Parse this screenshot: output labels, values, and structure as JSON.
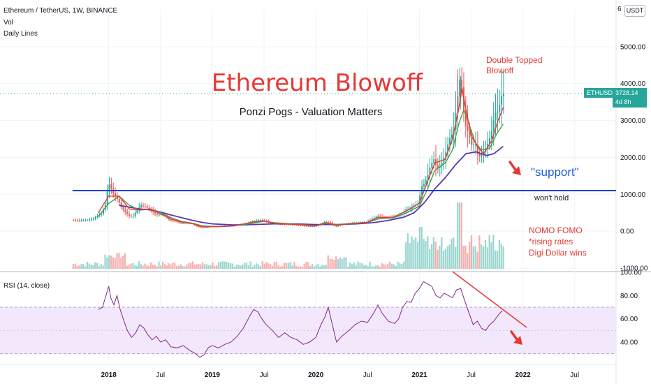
{
  "header": {
    "symbol_line": "Ethereum / TetherUS, 1W, BINANCE",
    "vol_label": "Vol",
    "daily_lines_label": "Daily Lines",
    "rsi_label": "RSI (14, close)"
  },
  "currency_button": "USDT",
  "top_axis_label": "6",
  "price_tag": {
    "symbol": "ETHUSDT",
    "price": "3728.14",
    "countdown": "4d 8h"
  },
  "annotations": {
    "title": "Ethereum Blowoff",
    "subtitle": "Ponzi Pogs - Valuation Matters",
    "double_top_line1": "Double Topped",
    "double_top_line2": "Blowoff",
    "support": "\"support\"",
    "wont_hold": "won't hold",
    "nomo1": "NOMO FOMO",
    "nomo2": "*rising rates",
    "nomo3": "Digi Dollar wins"
  },
  "colors": {
    "up": "#26a69a",
    "down": "#ef5350",
    "ma_fast": "#e53935",
    "ma_mid": "#43a047",
    "ma_slow": "#5e35b1",
    "support_line": "#1e3fce",
    "rsi_line": "#7e2a86",
    "rsi_band": "#f3e7fb",
    "title_red": "#e53935",
    "support_text": "#1e5bd9"
  },
  "chart_data": {
    "type": "candlestick",
    "price_axis": {
      "ticks": [
        5000,
        4000,
        3000,
        2000,
        1000,
        0,
        -1000
      ],
      "tick_labels": [
        "5000.00",
        "4000.00",
        "3000.00",
        "2000.00",
        "1000.00",
        "0.00",
        "-1000.00"
      ],
      "range": [
        -1000,
        6000
      ]
    },
    "rsi_axis": {
      "ticks": [
        100,
        80,
        60,
        40
      ],
      "tick_labels": [
        "100.00",
        "80.00",
        "60.00",
        "40.00"
      ],
      "band": [
        30,
        70
      ],
      "range": [
        25,
        100
      ]
    },
    "time_axis": {
      "tick_labels": [
        "2018",
        "Jul",
        "2019",
        "Jul",
        "2020",
        "Jul",
        "2021",
        "Jul",
        "2022",
        "Jul"
      ],
      "tick_dates": [
        2018.0,
        2018.5,
        2019.0,
        2019.5,
        2020.0,
        2020.5,
        2021.0,
        2021.5,
        2022.0,
        2022.5
      ],
      "range": [
        2016.95,
        2022.9
      ]
    },
    "support_level": 1100,
    "support_start": 2017.65,
    "last_price": 3728.14,
    "price_series": [
      [
        2017.65,
        300
      ],
      [
        2017.72,
        290
      ],
      [
        2017.8,
        300
      ],
      [
        2017.86,
        330
      ],
      [
        2017.9,
        420
      ],
      [
        2017.94,
        470
      ],
      [
        2017.98,
        740
      ],
      [
        2018.0,
        1150
      ],
      [
        2018.02,
        1300
      ],
      [
        2018.04,
        1100
      ],
      [
        2018.07,
        950
      ],
      [
        2018.1,
        850
      ],
      [
        2018.13,
        650
      ],
      [
        2018.16,
        550
      ],
      [
        2018.2,
        430
      ],
      [
        2018.24,
        390
      ],
      [
        2018.28,
        560
      ],
      [
        2018.32,
        700
      ],
      [
        2018.36,
        680
      ],
      [
        2018.4,
        590
      ],
      [
        2018.44,
        520
      ],
      [
        2018.48,
        440
      ],
      [
        2018.52,
        460
      ],
      [
        2018.56,
        420
      ],
      [
        2018.6,
        290
      ],
      [
        2018.64,
        280
      ],
      [
        2018.7,
        220
      ],
      [
        2018.76,
        220
      ],
      [
        2018.82,
        205
      ],
      [
        2018.87,
        110
      ],
      [
        2018.93,
        90
      ],
      [
        2018.97,
        120
      ],
      [
        2019.0,
        140
      ],
      [
        2019.06,
        120
      ],
      [
        2019.12,
        140
      ],
      [
        2019.18,
        140
      ],
      [
        2019.25,
        170
      ],
      [
        2019.33,
        170
      ],
      [
        2019.38,
        260
      ],
      [
        2019.43,
        280
      ],
      [
        2019.47,
        310
      ],
      [
        2019.52,
        280
      ],
      [
        2019.58,
        210
      ],
      [
        2019.65,
        190
      ],
      [
        2019.72,
        180
      ],
      [
        2019.8,
        180
      ],
      [
        2019.88,
        150
      ],
      [
        2019.95,
        130
      ],
      [
        2020.0,
        140
      ],
      [
        2020.05,
        180
      ],
      [
        2020.1,
        260
      ],
      [
        2020.15,
        230
      ],
      [
        2020.2,
        120
      ],
      [
        2020.25,
        180
      ],
      [
        2020.33,
        210
      ],
      [
        2020.42,
        235
      ],
      [
        2020.5,
        240
      ],
      [
        2020.55,
        330
      ],
      [
        2020.6,
        400
      ],
      [
        2020.66,
        380
      ],
      [
        2020.72,
        360
      ],
      [
        2020.78,
        390
      ],
      [
        2020.84,
        450
      ],
      [
        2020.88,
        580
      ],
      [
        2020.92,
        600
      ],
      [
        2020.96,
        700
      ],
      [
        2021.0,
        750
      ],
      [
        2021.03,
        1200
      ],
      [
        2021.06,
        1300
      ],
      [
        2021.09,
        1500
      ],
      [
        2021.12,
        1800
      ],
      [
        2021.15,
        1950
      ],
      [
        2021.18,
        1700
      ],
      [
        2021.22,
        1800
      ],
      [
        2021.26,
        2100
      ],
      [
        2021.3,
        2500
      ],
      [
        2021.34,
        2700
      ],
      [
        2021.37,
        3400
      ],
      [
        2021.4,
        4100
      ],
      [
        2021.42,
        3900
      ],
      [
        2021.45,
        2900
      ],
      [
        2021.48,
        2700
      ],
      [
        2021.52,
        2300
      ],
      [
        2021.55,
        2400
      ],
      [
        2021.58,
        2000
      ],
      [
        2021.62,
        2100
      ],
      [
        2021.66,
        2300
      ],
      [
        2021.7,
        2600
      ],
      [
        2021.74,
        3200
      ],
      [
        2021.77,
        3250
      ],
      [
        2021.81,
        3728
      ]
    ],
    "ma_fast": [
      [
        2017.9,
        500
      ],
      [
        2018.0,
        950
      ],
      [
        2018.1,
        950
      ],
      [
        2018.2,
        600
      ],
      [
        2018.3,
        580
      ],
      [
        2018.4,
        600
      ],
      [
        2018.5,
        470
      ],
      [
        2018.6,
        330
      ],
      [
        2018.7,
        250
      ],
      [
        2018.8,
        210
      ],
      [
        2018.9,
        120
      ],
      [
        2019.0,
        120
      ],
      [
        2019.2,
        140
      ],
      [
        2019.4,
        250
      ],
      [
        2019.5,
        280
      ],
      [
        2019.6,
        210
      ],
      [
        2019.8,
        180
      ],
      [
        2020.0,
        140
      ],
      [
        2020.1,
        230
      ],
      [
        2020.2,
        160
      ],
      [
        2020.35,
        210
      ],
      [
        2020.5,
        240
      ],
      [
        2020.6,
        370
      ],
      [
        2020.75,
        380
      ],
      [
        2020.88,
        560
      ],
      [
        2021.0,
        760
      ],
      [
        2021.08,
        1350
      ],
      [
        2021.15,
        1850
      ],
      [
        2021.25,
        1950
      ],
      [
        2021.32,
        2500
      ],
      [
        2021.38,
        3300
      ],
      [
        2021.41,
        3900
      ],
      [
        2021.45,
        3300
      ],
      [
        2021.5,
        2600
      ],
      [
        2021.56,
        2300
      ],
      [
        2021.62,
        2100
      ],
      [
        2021.7,
        2450
      ],
      [
        2021.76,
        3000
      ],
      [
        2021.81,
        3350
      ]
    ],
    "ma_mid": [
      [
        2017.9,
        400
      ],
      [
        2018.0,
        750
      ],
      [
        2018.1,
        950
      ],
      [
        2018.2,
        700
      ],
      [
        2018.3,
        570
      ],
      [
        2018.4,
        600
      ],
      [
        2018.5,
        500
      ],
      [
        2018.6,
        370
      ],
      [
        2018.7,
        270
      ],
      [
        2018.8,
        220
      ],
      [
        2018.9,
        150
      ],
      [
        2019.0,
        125
      ],
      [
        2019.2,
        140
      ],
      [
        2019.4,
        220
      ],
      [
        2019.5,
        270
      ],
      [
        2019.6,
        230
      ],
      [
        2019.8,
        190
      ],
      [
        2020.0,
        150
      ],
      [
        2020.1,
        210
      ],
      [
        2020.2,
        180
      ],
      [
        2020.35,
        200
      ],
      [
        2020.5,
        235
      ],
      [
        2020.6,
        330
      ],
      [
        2020.75,
        370
      ],
      [
        2020.88,
        500
      ],
      [
        2021.0,
        680
      ],
      [
        2021.08,
        1150
      ],
      [
        2021.15,
        1650
      ],
      [
        2021.25,
        1850
      ],
      [
        2021.32,
        2200
      ],
      [
        2021.38,
        2900
      ],
      [
        2021.43,
        3300
      ],
      [
        2021.48,
        2900
      ],
      [
        2021.54,
        2400
      ],
      [
        2021.6,
        2200
      ],
      [
        2021.68,
        2250
      ],
      [
        2021.75,
        2650
      ],
      [
        2021.81,
        2900
      ]
    ],
    "ma_slow": [
      [
        2018.1,
        700
      ],
      [
        2018.2,
        650
      ],
      [
        2018.3,
        600
      ],
      [
        2018.4,
        580
      ],
      [
        2018.5,
        520
      ],
      [
        2018.6,
        440
      ],
      [
        2018.7,
        370
      ],
      [
        2018.8,
        300
      ],
      [
        2018.9,
        240
      ],
      [
        2019.0,
        200
      ],
      [
        2019.2,
        170
      ],
      [
        2019.4,
        180
      ],
      [
        2019.6,
        200
      ],
      [
        2019.8,
        200
      ],
      [
        2020.0,
        180
      ],
      [
        2020.2,
        180
      ],
      [
        2020.4,
        200
      ],
      [
        2020.55,
        230
      ],
      [
        2020.7,
        290
      ],
      [
        2020.85,
        380
      ],
      [
        2020.95,
        500
      ],
      [
        2021.05,
        780
      ],
      [
        2021.15,
        1150
      ],
      [
        2021.25,
        1450
      ],
      [
        2021.35,
        1800
      ],
      [
        2021.45,
        2100
      ],
      [
        2021.55,
        2150
      ],
      [
        2021.65,
        2050
      ],
      [
        2021.72,
        2100
      ],
      [
        2021.81,
        2300
      ]
    ],
    "volume_scale_max": 1,
    "rsi_series": [
      [
        2017.9,
        68
      ],
      [
        2017.94,
        70
      ],
      [
        2017.98,
        82
      ],
      [
        2018.0,
        88
      ],
      [
        2018.02,
        78
      ],
      [
        2018.05,
        72
      ],
      [
        2018.08,
        80
      ],
      [
        2018.11,
        68
      ],
      [
        2018.14,
        60
      ],
      [
        2018.18,
        50
      ],
      [
        2018.22,
        44
      ],
      [
        2018.26,
        48
      ],
      [
        2018.3,
        55
      ],
      [
        2018.34,
        52
      ],
      [
        2018.38,
        46
      ],
      [
        2018.42,
        42
      ],
      [
        2018.46,
        45
      ],
      [
        2018.5,
        40
      ],
      [
        2018.55,
        42
      ],
      [
        2018.6,
        36
      ],
      [
        2018.66,
        35
      ],
      [
        2018.72,
        37
      ],
      [
        2018.78,
        33
      ],
      [
        2018.84,
        30
      ],
      [
        2018.88,
        27
      ],
      [
        2018.92,
        29
      ],
      [
        2018.96,
        35
      ],
      [
        2019.0,
        37
      ],
      [
        2019.06,
        35
      ],
      [
        2019.12,
        38
      ],
      [
        2019.18,
        40
      ],
      [
        2019.24,
        45
      ],
      [
        2019.3,
        52
      ],
      [
        2019.36,
        62
      ],
      [
        2019.4,
        68
      ],
      [
        2019.44,
        66
      ],
      [
        2019.48,
        60
      ],
      [
        2019.52,
        55
      ],
      [
        2019.58,
        50
      ],
      [
        2019.64,
        44
      ],
      [
        2019.7,
        48
      ],
      [
        2019.76,
        44
      ],
      [
        2019.82,
        42
      ],
      [
        2019.88,
        38
      ],
      [
        2019.94,
        40
      ],
      [
        2020.0,
        44
      ],
      [
        2020.05,
        55
      ],
      [
        2020.09,
        62
      ],
      [
        2020.12,
        70
      ],
      [
        2020.16,
        55
      ],
      [
        2020.2,
        40
      ],
      [
        2020.25,
        45
      ],
      [
        2020.32,
        50
      ],
      [
        2020.38,
        55
      ],
      [
        2020.44,
        58
      ],
      [
        2020.5,
        57
      ],
      [
        2020.56,
        65
      ],
      [
        2020.6,
        72
      ],
      [
        2020.64,
        65
      ],
      [
        2020.7,
        58
      ],
      [
        2020.76,
        56
      ],
      [
        2020.8,
        60
      ],
      [
        2020.84,
        70
      ],
      [
        2020.88,
        75
      ],
      [
        2020.92,
        74
      ],
      [
        2020.96,
        82
      ],
      [
        2021.0,
        86
      ],
      [
        2021.04,
        92
      ],
      [
        2021.08,
        90
      ],
      [
        2021.12,
        88
      ],
      [
        2021.16,
        80
      ],
      [
        2021.2,
        78
      ],
      [
        2021.24,
        82
      ],
      [
        2021.28,
        80
      ],
      [
        2021.32,
        78
      ],
      [
        2021.36,
        85
      ],
      [
        2021.4,
        86
      ],
      [
        2021.44,
        75
      ],
      [
        2021.48,
        65
      ],
      [
        2021.52,
        55
      ],
      [
        2021.56,
        58
      ],
      [
        2021.6,
        52
      ],
      [
        2021.64,
        50
      ],
      [
        2021.68,
        55
      ],
      [
        2021.72,
        58
      ],
      [
        2021.76,
        63
      ],
      [
        2021.8,
        67
      ]
    ]
  }
}
